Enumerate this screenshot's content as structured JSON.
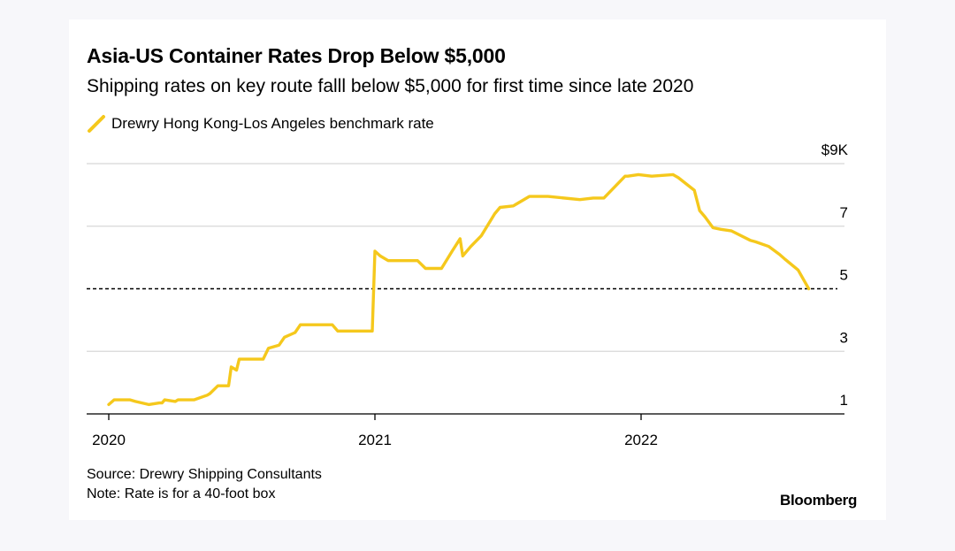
{
  "chart_data": {
    "type": "line",
    "title": "Asia-US Container Rates Drop Below $5,000",
    "subtitle": "Shipping rates on key route falll below $5,000 for first time since late 2020",
    "legend": {
      "placement": "top-left",
      "entries": [
        "Drewry Hong Kong-Los Angeles benchmark rate"
      ]
    },
    "x_ticks": [
      "2020",
      "2021",
      "2022"
    ],
    "y_ticks": [
      "$9K",
      "7",
      "5",
      "3",
      "1"
    ],
    "y_tick_values": [
      9,
      7,
      5,
      3,
      1
    ],
    "ylim": [
      1,
      9
    ],
    "xlim": [
      2020,
      2022.75
    ],
    "reference_line": {
      "value": 5,
      "style": "dashed"
    },
    "grid": "horizontal",
    "colors": {
      "series": "#f5c81c",
      "reference": "#000000",
      "grid": "#d8d8d8"
    },
    "series": [
      {
        "name": "Drewry Hong Kong-Los Angeles benchmark rate",
        "unit": "thousand USD per 40-foot box",
        "x": [
          2020.0,
          2020.02,
          2020.08,
          2020.1,
          2020.15,
          2020.19,
          2020.2,
          2020.21,
          2020.25,
          2020.26,
          2020.32,
          2020.37,
          2020.38,
          2020.41,
          2020.45,
          2020.46,
          2020.48,
          2020.49,
          2020.58,
          2020.6,
          2020.64,
          2020.66,
          2020.7,
          2020.72,
          2020.84,
          2020.86,
          2020.99,
          2021.0,
          2021.02,
          2021.05,
          2021.16,
          2021.19,
          2021.25,
          2021.29,
          2021.32,
          2021.33,
          2021.36,
          2021.4,
          2021.45,
          2021.47,
          2021.52,
          2021.53,
          2021.58,
          2021.61,
          2021.65,
          2021.77,
          2021.82,
          2021.86,
          2021.94,
          2021.95,
          2021.99,
          2022.04,
          2022.12,
          2022.14,
          2022.2,
          2022.22,
          2022.24,
          2022.27,
          2022.3,
          2022.34,
          2022.41,
          2022.43,
          2022.48,
          2022.52,
          2022.54,
          2022.59,
          2022.63
        ],
        "values": [
          1.3,
          1.45,
          1.45,
          1.4,
          1.3,
          1.35,
          1.35,
          1.45,
          1.4,
          1.45,
          1.45,
          1.6,
          1.65,
          1.9,
          1.9,
          2.5,
          2.4,
          2.75,
          2.75,
          3.1,
          3.2,
          3.45,
          3.6,
          3.85,
          3.85,
          3.65,
          3.65,
          6.2,
          6.05,
          5.9,
          5.9,
          5.65,
          5.65,
          6.2,
          6.6,
          6.05,
          6.35,
          6.7,
          7.4,
          7.6,
          7.65,
          7.7,
          7.95,
          7.95,
          7.95,
          7.85,
          7.9,
          7.9,
          8.6,
          8.6,
          8.65,
          8.6,
          8.65,
          8.55,
          8.15,
          7.5,
          7.3,
          6.95,
          6.9,
          6.85,
          6.55,
          6.5,
          6.35,
          6.1,
          5.95,
          5.6,
          5.0
        ]
      }
    ]
  },
  "footer": {
    "source": "Source: Drewry Shipping Consultants",
    "note": "Note: Rate is for a 40-foot box"
  },
  "brand": "Bloomberg"
}
